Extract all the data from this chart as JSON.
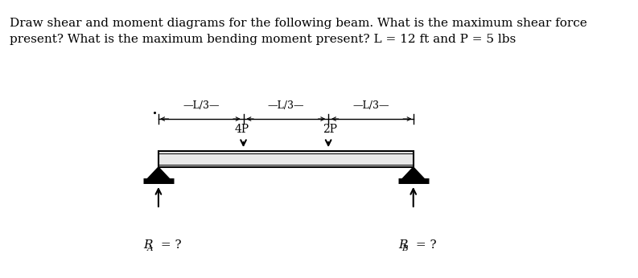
{
  "title_line1": "Draw shear and moment diagrams for the following beam. What is the maximum shear force",
  "title_line2": "present? What is the maximum bending moment present? L = 12 ft and P = 5 lbs",
  "title_fontsize": 11,
  "dim_labels": [
    "L/3",
    "L/3",
    "L/3"
  ],
  "load_labels": [
    "4P",
    "2P"
  ],
  "ra_label": "R",
  "ra_sub": "A",
  "rb_label": "R",
  "rb_sub": "B",
  "background_color": "#ffffff"
}
